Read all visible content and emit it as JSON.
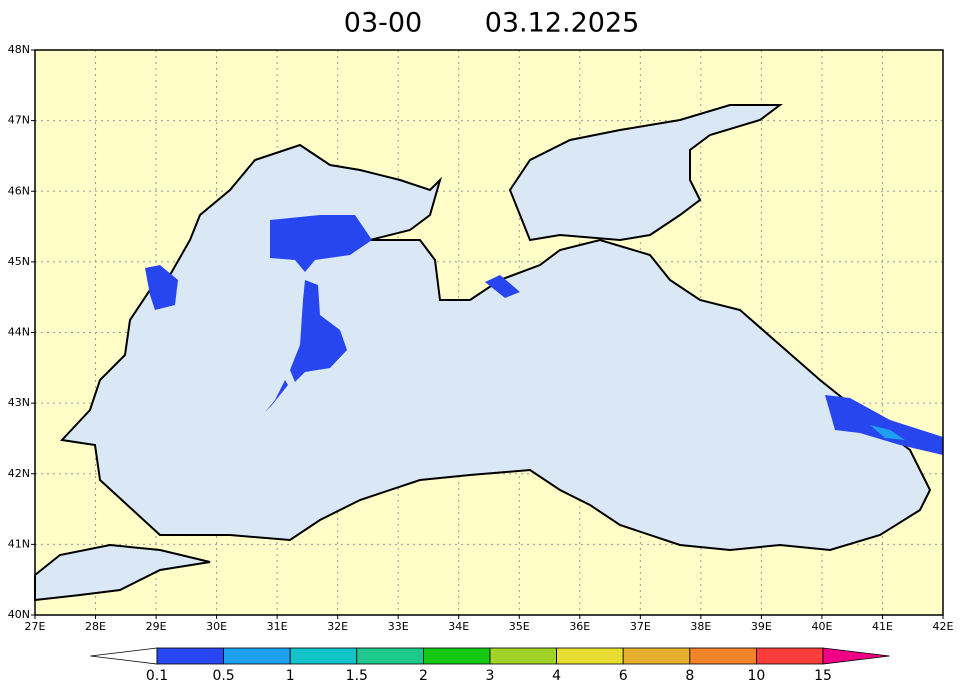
{
  "title": {
    "time": "03-00",
    "date": "03.12.2025"
  },
  "map": {
    "lon_range": [
      27,
      42
    ],
    "lat_range": [
      40,
      48
    ],
    "lon_ticks": [
      {
        "value": 27,
        "label": "27E"
      },
      {
        "value": 28,
        "label": "28E"
      },
      {
        "value": 29,
        "label": "29E"
      },
      {
        "value": 30,
        "label": "30E"
      },
      {
        "value": 31,
        "label": "31E"
      },
      {
        "value": 32,
        "label": "32E"
      },
      {
        "value": 33,
        "label": "33E"
      },
      {
        "value": 34,
        "label": "34E"
      },
      {
        "value": 35,
        "label": "35E"
      },
      {
        "value": 36,
        "label": "36E"
      },
      {
        "value": 37,
        "label": "37E"
      },
      {
        "value": 38,
        "label": "38E"
      },
      {
        "value": 39,
        "label": "39E"
      },
      {
        "value": 40,
        "label": "40E"
      },
      {
        "value": 41,
        "label": "41E"
      },
      {
        "value": 42,
        "label": "42E"
      }
    ],
    "lat_ticks": [
      {
        "value": 40,
        "label": "40N"
      },
      {
        "value": 41,
        "label": "41N"
      },
      {
        "value": 42,
        "label": "42N"
      },
      {
        "value": 43,
        "label": "43N"
      },
      {
        "value": 44,
        "label": "44N"
      },
      {
        "value": 45,
        "label": "45N"
      },
      {
        "value": 46,
        "label": "46N"
      },
      {
        "value": 47,
        "label": "47N"
      },
      {
        "value": 48,
        "label": "48N"
      }
    ],
    "grid": true
  },
  "colorbar": {
    "levels": [
      0.1,
      0.5,
      1,
      1.5,
      2,
      3,
      4,
      6,
      8,
      10,
      15
    ],
    "under_color": "#ffffff",
    "colors": [
      "#2846f0",
      "#1ea0f0",
      "#14c3c8",
      "#1ec88c",
      "#14c814",
      "#a0d228",
      "#e6dc32",
      "#e6af2d",
      "#f08228",
      "#fa3c3c"
    ],
    "over_color": "#f00082"
  }
}
